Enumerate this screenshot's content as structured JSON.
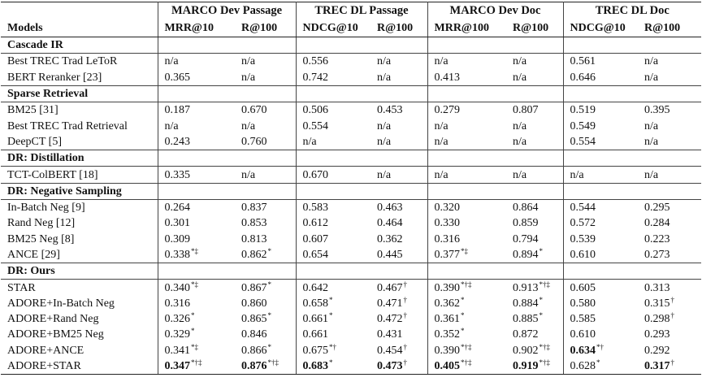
{
  "header": {
    "groups": [
      "MARCO Dev Passage",
      "TREC DL Passage",
      "MARCO Dev Doc",
      "TREC DL Doc"
    ],
    "models": "Models",
    "metrics": [
      "MRR@10",
      "R@100",
      "NDCG@10",
      "R@100",
      "MRR@100",
      "R@100",
      "NDCG@10",
      "R@100"
    ]
  },
  "sections": [
    {
      "title": "Cascade IR",
      "rows": [
        {
          "model": "Best TREC Trad LeToR",
          "cells": [
            "n/a",
            "n/a",
            "0.556",
            "n/a",
            "n/a",
            "n/a",
            "0.561",
            "n/a"
          ]
        },
        {
          "model": "BERT Reranker [23]",
          "cells": [
            "0.365",
            "n/a",
            "0.742",
            "n/a",
            "0.413",
            "n/a",
            "0.646",
            "n/a"
          ]
        }
      ]
    },
    {
      "title": "Sparse Retrieval",
      "rows": [
        {
          "model": "BM25 [31]",
          "cells": [
            "0.187",
            "0.670",
            "0.506",
            "0.453",
            "0.279",
            "0.807",
            "0.519",
            "0.395"
          ]
        },
        {
          "model": "Best TREC Trad Retrieval",
          "cells": [
            "n/a",
            "n/a",
            "0.554",
            "n/a",
            "n/a",
            "n/a",
            "0.549",
            "n/a"
          ]
        },
        {
          "model": "DeepCT [5]",
          "cells": [
            "0.243",
            "0.760",
            "n/a",
            "n/a",
            "n/a",
            "n/a",
            "0.554",
            "n/a"
          ]
        }
      ]
    },
    {
      "title": "DR: Distillation",
      "rows": [
        {
          "model": "TCT-ColBERT [18]",
          "cells": [
            "0.335",
            "n/a",
            "0.670",
            "n/a",
            "n/a",
            "n/a",
            "n/a",
            "n/a"
          ]
        }
      ]
    },
    {
      "title": "DR: Negative Sampling",
      "rows": [
        {
          "model": "In-Batch Neg [9]",
          "cells": [
            "0.264",
            "0.837",
            "0.583",
            "0.463",
            "0.320",
            "0.864",
            "0.544",
            "0.295"
          ]
        },
        {
          "model": "Rand Neg [12]",
          "cells": [
            "0.301",
            "0.853",
            "0.612",
            "0.464",
            "0.330",
            "0.859",
            "0.572",
            "0.284"
          ]
        },
        {
          "model": "BM25 Neg [8]",
          "cells": [
            "0.309",
            "0.813",
            "0.607",
            "0.362",
            "0.316",
            "0.794",
            "0.539",
            "0.223"
          ]
        },
        {
          "model": "ANCE [29]",
          "cells": [
            {
              "text": "0.338",
              "sup": "*‡"
            },
            {
              "text": "0.862",
              "sup": "*"
            },
            "0.654",
            "0.445",
            {
              "text": "0.377",
              "sup": "*‡"
            },
            {
              "text": "0.894",
              "sup": "*"
            },
            "0.610",
            "0.273"
          ]
        }
      ]
    },
    {
      "title": "DR: Ours",
      "rows": [
        {
          "model": "STAR",
          "cells": [
            {
              "text": "0.340",
              "sup": "*‡"
            },
            {
              "text": "0.867",
              "sup": "*"
            },
            "0.642",
            {
              "text": "0.467",
              "sup": "†"
            },
            {
              "text": "0.390",
              "sup": "*†‡"
            },
            {
              "text": "0.913",
              "sup": "*†‡"
            },
            "0.605",
            "0.313"
          ]
        },
        {
          "model": "ADORE+In-Batch Neg",
          "cells": [
            "0.316",
            "0.860",
            {
              "text": "0.658",
              "sup": "*"
            },
            {
              "text": "0.471",
              "sup": "†"
            },
            {
              "text": "0.362",
              "sup": "*"
            },
            {
              "text": "0.884",
              "sup": "*"
            },
            "0.580",
            {
              "text": "0.315",
              "sup": "†"
            }
          ]
        },
        {
          "model": "ADORE+Rand Neg",
          "cells": [
            {
              "text": "0.326",
              "sup": "*"
            },
            {
              "text": "0.865",
              "sup": "*"
            },
            {
              "text": "0.661",
              "sup": "*"
            },
            {
              "text": "0.472",
              "sup": "†"
            },
            {
              "text": "0.361",
              "sup": "*"
            },
            {
              "text": "0.885",
              "sup": "*"
            },
            "0.585",
            {
              "text": "0.298",
              "sup": "†"
            }
          ]
        },
        {
          "model": "ADORE+BM25 Neg",
          "cells": [
            {
              "text": "0.329",
              "sup": "*"
            },
            "0.846",
            "0.661",
            "0.431",
            {
              "text": "0.352",
              "sup": "*"
            },
            "0.872",
            "0.610",
            "0.293"
          ]
        },
        {
          "model": "ADORE+ANCE",
          "cells": [
            {
              "text": "0.341",
              "sup": "*‡"
            },
            {
              "text": "0.866",
              "sup": "*"
            },
            {
              "text": "0.675",
              "sup": "*†"
            },
            {
              "text": "0.454",
              "sup": "†"
            },
            {
              "text": "0.390",
              "sup": "*†‡"
            },
            {
              "text": "0.902",
              "sup": "*†‡"
            },
            {
              "text": "0.634",
              "sup": "*†",
              "bold": true
            },
            "0.292"
          ]
        },
        {
          "model": "ADORE+STAR",
          "cells": [
            {
              "text": "0.347",
              "sup": "*†‡",
              "bold": true
            },
            {
              "text": "0.876",
              "sup": "*†‡",
              "bold": true
            },
            {
              "text": "0.683",
              "sup": "*",
              "bold": true
            },
            {
              "text": "0.473",
              "sup": "†",
              "bold": true
            },
            {
              "text": "0.405",
              "sup": "*†‡",
              "bold": true
            },
            {
              "text": "0.919",
              "sup": "*†‡",
              "bold": true
            },
            {
              "text": "0.628",
              "sup": "*"
            },
            {
              "text": "0.317",
              "sup": "†",
              "bold": true
            }
          ]
        }
      ]
    }
  ]
}
